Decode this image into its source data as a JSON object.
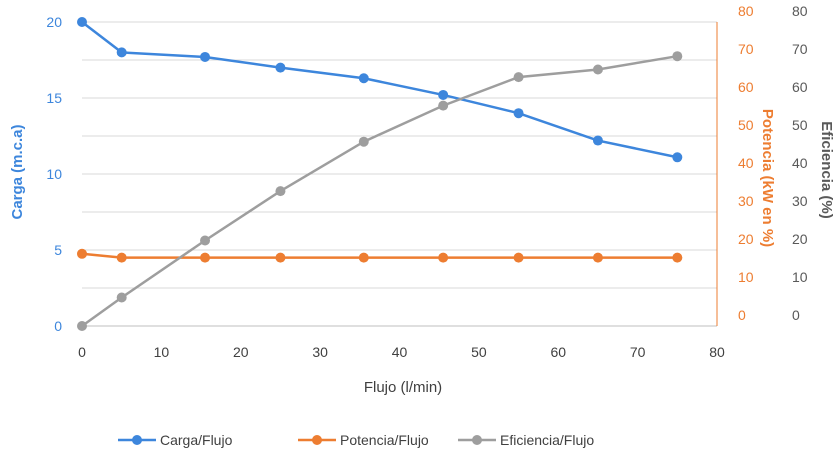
{
  "chart_data": {
    "type": "line",
    "x_label": "Flujo (l/min)",
    "x_ticks": [
      "0",
      "10",
      "20",
      "30",
      "40",
      "50",
      "60",
      "70",
      "80"
    ],
    "xlim": [
      0,
      80
    ],
    "y_left": {
      "label": "Carga (m.c.a)",
      "ticks": [
        "0",
        "5",
        "10",
        "15",
        "20"
      ],
      "lim": [
        0,
        20
      ],
      "color": "#3d86dc"
    },
    "y_right1": {
      "label": "Potencia (kW en %)",
      "ticks": [
        "0",
        "10",
        "20",
        "30",
        "40",
        "50",
        "60",
        "70",
        "80"
      ],
      "lim": [
        0,
        80
      ],
      "color": "#ed7d31"
    },
    "y_right2": {
      "label": "Eficiencia (%)",
      "ticks": [
        "0",
        "10",
        "20",
        "30",
        "40",
        "50",
        "60",
        "70",
        "80"
      ],
      "lim": [
        0,
        80
      ],
      "color": "#595959"
    },
    "grid": true,
    "legend_position": "bottom",
    "series": [
      {
        "name": "Carga/Flujo",
        "axis": "left",
        "color": "#3d86dc",
        "x": [
          0,
          5,
          15.5,
          25,
          35.5,
          45.5,
          55,
          65,
          75
        ],
        "y": [
          20,
          18,
          17.7,
          17,
          16.3,
          15.2,
          14,
          12.2,
          11.1
        ]
      },
      {
        "name": "Potencia/Flujo",
        "axis": "right1",
        "color": "#ed7d31",
        "x": [
          0,
          5,
          15.5,
          25,
          35.5,
          45.5,
          55,
          65,
          75
        ],
        "y": [
          19,
          18,
          18,
          18,
          18,
          18,
          18,
          18,
          18
        ]
      },
      {
        "name": "Eficiencia/Flujo",
        "axis": "right2",
        "color": "#9e9e9e",
        "x": [
          0,
          5,
          15.5,
          25,
          35.5,
          45.5,
          55,
          65,
          75
        ],
        "y": [
          0,
          7.5,
          22.5,
          35.5,
          48.5,
          58,
          65.5,
          67.5,
          71
        ]
      }
    ]
  }
}
